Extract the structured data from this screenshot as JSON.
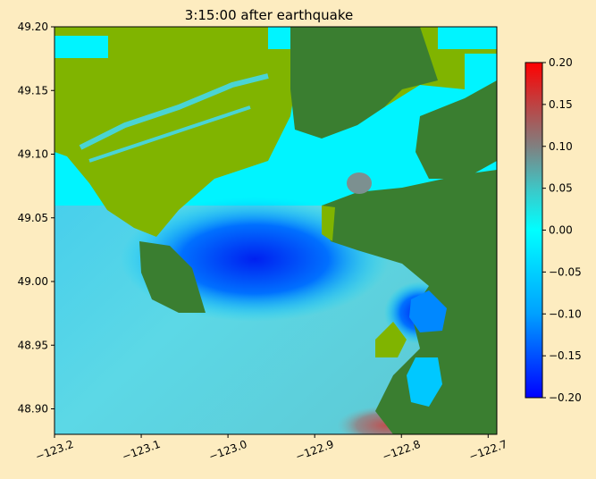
{
  "chart_data": {
    "type": "heatmap",
    "title": "3:15:00 after earthquake",
    "xlim": [
      -123.2,
      -122.69
    ],
    "ylim": [
      48.88,
      49.2
    ],
    "xticks": [
      -123.2,
      -123.1,
      -123.0,
      -122.9,
      -122.8,
      -122.7
    ],
    "xtick_labels": [
      "−123.2",
      "−123.1",
      "−123.0",
      "−122.9",
      "−122.8",
      "−122.7"
    ],
    "yticks": [
      48.9,
      48.95,
      49.0,
      49.05,
      49.1,
      49.15,
      49.2
    ],
    "ytick_labels": [
      "48.90",
      "48.95",
      "49.00",
      "49.05",
      "49.10",
      "49.15",
      "49.20"
    ],
    "colorbar": {
      "range": [
        -0.2,
        0.2
      ],
      "ticks": [
        0.2,
        0.15,
        0.1,
        0.05,
        0.0,
        -0.05,
        -0.1,
        -0.15,
        -0.2
      ],
      "tick_labels": [
        "0.20",
        "0.15",
        "0.10",
        "0.05",
        "0.00",
        "−0.05",
        "−0.10",
        "−0.15",
        "−0.20"
      ],
      "colors": [
        "#0000ff",
        "#00a0ff",
        "#00ffff",
        "#3cc8c8",
        "#808080",
        "#c04040",
        "#ff0000"
      ]
    },
    "map_colors": {
      "land_high": "#3a7e30",
      "land_low": "#7fb000",
      "water_base": "#4fd4e4"
    }
  }
}
